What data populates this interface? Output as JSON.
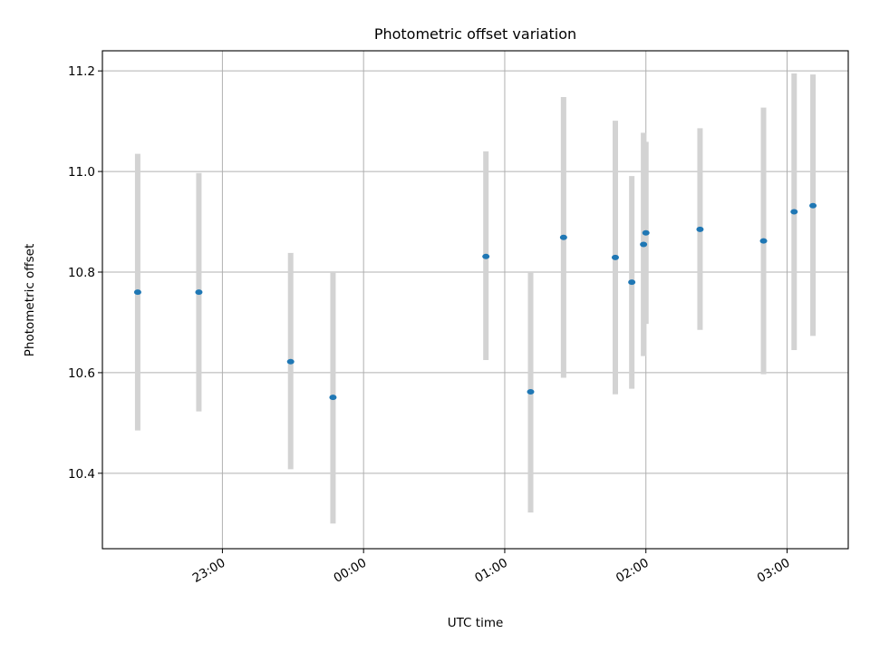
{
  "chart_data": {
    "type": "scatter",
    "title": "Photometric offset variation",
    "xlabel": "UTC time",
    "ylabel": "Photometric offset",
    "x_axis_kind": "time",
    "xlim": [
      "22:09",
      "03:26"
    ],
    "ylim": [
      10.25,
      11.24
    ],
    "grid": true,
    "x_ticks": [
      "23:00",
      "00:00",
      "01:00",
      "02:00",
      "03:00"
    ],
    "y_ticks": [
      "10.4",
      "10.6",
      "10.8",
      "11.0",
      "11.2"
    ],
    "errorbar_color": "#d3d3d3",
    "point_color": "#1f77b4",
    "series": [
      {
        "x": [
          "22:24",
          "22:50",
          "23:29",
          "23:47",
          "00:52",
          "01:11",
          "01:25",
          "01:47",
          "01:54",
          "01:59",
          "02:00",
          "02:23",
          "02:50",
          "03:03",
          "03:11"
        ],
        "y": [
          10.76,
          10.76,
          10.622,
          10.551,
          10.831,
          10.562,
          10.869,
          10.829,
          10.78,
          10.855,
          10.878,
          10.885,
          10.862,
          10.92,
          10.932
        ],
        "y_low": [
          10.485,
          10.523,
          10.408,
          10.3,
          10.625,
          10.322,
          10.59,
          10.557,
          10.568,
          10.633,
          10.697,
          10.685,
          10.597,
          10.645,
          10.673
        ],
        "y_high": [
          11.035,
          10.997,
          10.838,
          10.8,
          11.04,
          10.8,
          11.148,
          11.101,
          10.991,
          11.077,
          11.059,
          11.086,
          11.127,
          11.195,
          11.193
        ]
      }
    ]
  }
}
